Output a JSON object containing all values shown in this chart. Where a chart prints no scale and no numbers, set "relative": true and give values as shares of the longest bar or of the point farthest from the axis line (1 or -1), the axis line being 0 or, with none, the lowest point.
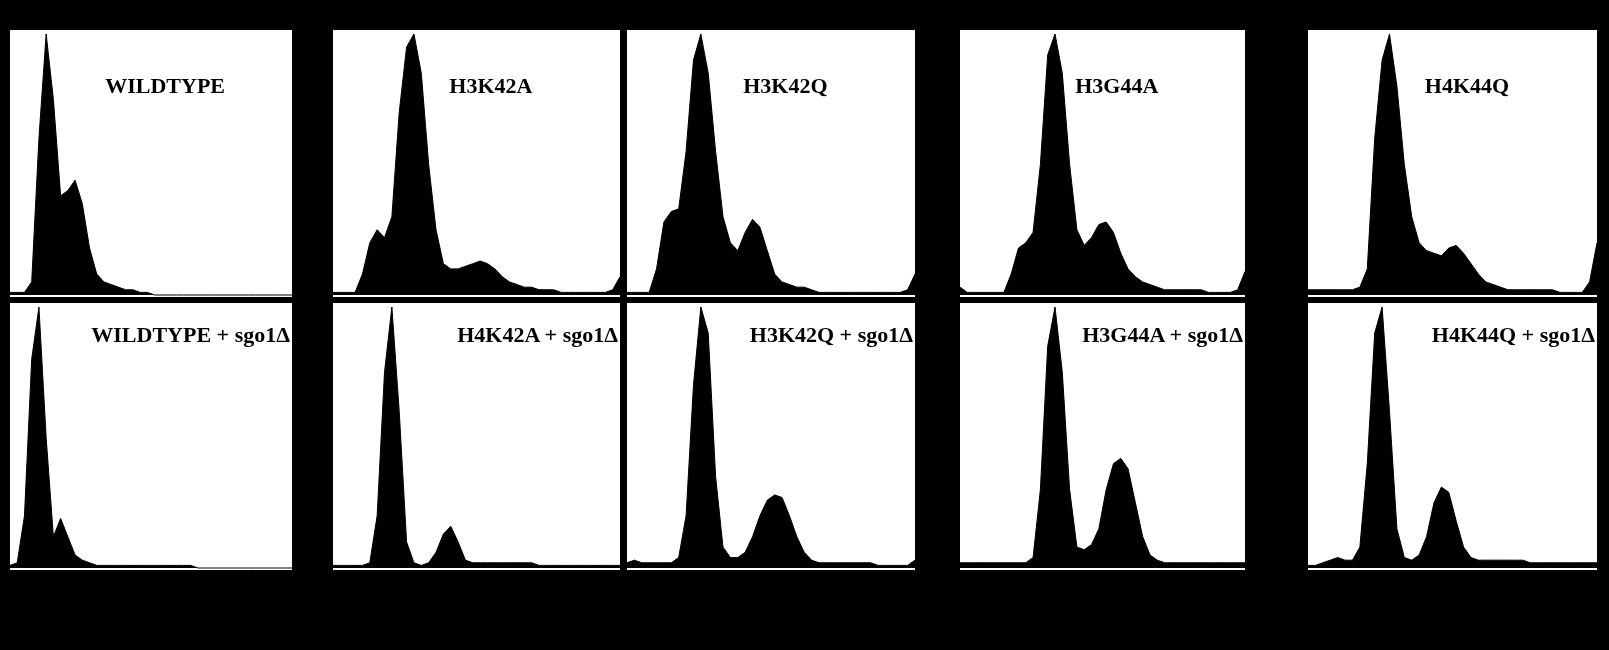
{
  "chart_data": [
    {
      "type": "area",
      "title": "WILDTYPE",
      "relative": true,
      "color": "#000000",
      "categories": [
        null,
        null,
        null,
        null,
        null,
        null,
        null,
        null,
        null,
        null,
        null,
        null,
        null,
        null,
        null,
        null,
        null,
        null,
        null,
        null,
        null,
        null,
        null,
        null,
        null,
        null,
        null,
        null,
        null,
        null,
        null,
        null,
        null,
        null,
        null,
        null,
        null,
        null,
        null,
        null
      ],
      "values": [
        0.01,
        0.01,
        0.01,
        0.05,
        0.6,
        1,
        0.75,
        0.38,
        0.4,
        0.44,
        0.35,
        0.18,
        0.08,
        0.05,
        0.04,
        0.03,
        0.02,
        0.02,
        0.01,
        0.01,
        0,
        0,
        0,
        0,
        0,
        0,
        0,
        0,
        0,
        0,
        0,
        0,
        0,
        0,
        0,
        0,
        0,
        0,
        0,
        0
      ]
    },
    {
      "type": "area",
      "title": "H3K42A",
      "relative": true,
      "color": "#000000",
      "categories": [
        null,
        null,
        null,
        null,
        null,
        null,
        null,
        null,
        null,
        null,
        null,
        null,
        null,
        null,
        null,
        null,
        null,
        null,
        null,
        null,
        null,
        null,
        null,
        null,
        null,
        null,
        null,
        null,
        null,
        null,
        null,
        null,
        null,
        null,
        null,
        null,
        null,
        null,
        null,
        null
      ],
      "values": [
        0.01,
        0.01,
        0.01,
        0.01,
        0.08,
        0.2,
        0.25,
        0.22,
        0.3,
        0.7,
        0.95,
        1,
        0.85,
        0.5,
        0.25,
        0.12,
        0.1,
        0.1,
        0.11,
        0.12,
        0.13,
        0.12,
        0.1,
        0.07,
        0.05,
        0.04,
        0.03,
        0.03,
        0.02,
        0.02,
        0.02,
        0.01,
        0.01,
        0.01,
        0.01,
        0.01,
        0.01,
        0.01,
        0.02,
        0.07
      ]
    },
    {
      "type": "area",
      "title": "H3K42Q",
      "relative": true,
      "color": "#000000",
      "categories": [
        null,
        null,
        null,
        null,
        null,
        null,
        null,
        null,
        null,
        null,
        null,
        null,
        null,
        null,
        null,
        null,
        null,
        null,
        null,
        null,
        null,
        null,
        null,
        null,
        null,
        null,
        null,
        null,
        null,
        null,
        null,
        null,
        null,
        null,
        null,
        null,
        null,
        null,
        null,
        null
      ],
      "values": [
        0.01,
        0.01,
        0.01,
        0.01,
        0.1,
        0.28,
        0.32,
        0.33,
        0.55,
        0.9,
        1,
        0.85,
        0.55,
        0.3,
        0.2,
        0.17,
        0.24,
        0.29,
        0.26,
        0.17,
        0.08,
        0.05,
        0.04,
        0.03,
        0.03,
        0.02,
        0.01,
        0.01,
        0.01,
        0.01,
        0.01,
        0.01,
        0.01,
        0.01,
        0.01,
        0.01,
        0.01,
        0.01,
        0.02,
        0.08
      ]
    },
    {
      "type": "area",
      "title": "H3G44A",
      "relative": true,
      "color": "#000000",
      "categories": [
        null,
        null,
        null,
        null,
        null,
        null,
        null,
        null,
        null,
        null,
        null,
        null,
        null,
        null,
        null,
        null,
        null,
        null,
        null,
        null,
        null,
        null,
        null,
        null,
        null,
        null,
        null,
        null,
        null,
        null,
        null,
        null,
        null,
        null,
        null,
        null,
        null,
        null,
        null,
        null
      ],
      "values": [
        0.03,
        0.01,
        0.01,
        0.01,
        0.01,
        0.01,
        0.01,
        0.08,
        0.18,
        0.2,
        0.24,
        0.5,
        0.92,
        1,
        0.85,
        0.5,
        0.25,
        0.19,
        0.22,
        0.27,
        0.28,
        0.24,
        0.16,
        0.1,
        0.07,
        0.05,
        0.04,
        0.03,
        0.02,
        0.02,
        0.02,
        0.02,
        0.02,
        0.02,
        0.01,
        0.01,
        0.01,
        0.01,
        0.02,
        0.09
      ]
    },
    {
      "type": "area",
      "title": "H4K44Q",
      "relative": true,
      "color": "#000000",
      "categories": [
        null,
        null,
        null,
        null,
        null,
        null,
        null,
        null,
        null,
        null,
        null,
        null,
        null,
        null,
        null,
        null,
        null,
        null,
        null,
        null,
        null,
        null,
        null,
        null,
        null,
        null,
        null,
        null,
        null,
        null,
        null,
        null,
        null,
        null,
        null,
        null,
        null,
        null,
        null,
        null
      ],
      "values": [
        0.02,
        0.02,
        0.02,
        0.02,
        0.02,
        0.02,
        0.02,
        0.03,
        0.1,
        0.6,
        0.9,
        1,
        0.8,
        0.5,
        0.3,
        0.2,
        0.17,
        0.16,
        0.15,
        0.18,
        0.19,
        0.16,
        0.12,
        0.08,
        0.05,
        0.04,
        0.03,
        0.02,
        0.02,
        0.02,
        0.02,
        0.02,
        0.02,
        0.02,
        0.01,
        0.01,
        0.01,
        0.01,
        0.05,
        0.2
      ]
    },
    {
      "type": "area",
      "title": "WILDTYPE + sgo1Δ",
      "relative": true,
      "color": "#000000",
      "categories": [
        null,
        null,
        null,
        null,
        null,
        null,
        null,
        null,
        null,
        null,
        null,
        null,
        null,
        null,
        null,
        null,
        null,
        null,
        null,
        null,
        null,
        null,
        null,
        null,
        null,
        null,
        null,
        null,
        null,
        null,
        null,
        null,
        null,
        null,
        null,
        null,
        null,
        null,
        null,
        null
      ],
      "values": [
        0.01,
        0.02,
        0.2,
        0.8,
        1,
        0.5,
        0.12,
        0.19,
        0.12,
        0.05,
        0.03,
        0.02,
        0.01,
        0.01,
        0.01,
        0.01,
        0.01,
        0.01,
        0.01,
        0.01,
        0.01,
        0.01,
        0.01,
        0.01,
        0.01,
        0.01,
        0,
        0,
        0,
        0,
        0,
        0,
        0,
        0,
        0,
        0,
        0,
        0,
        0,
        0
      ]
    },
    {
      "type": "area",
      "title": "H4K42A + sgo1Δ",
      "relative": true,
      "color": "#000000",
      "categories": [
        null,
        null,
        null,
        null,
        null,
        null,
        null,
        null,
        null,
        null,
        null,
        null,
        null,
        null,
        null,
        null,
        null,
        null,
        null,
        null,
        null,
        null,
        null,
        null,
        null,
        null,
        null,
        null,
        null,
        null,
        null,
        null,
        null,
        null,
        null,
        null,
        null,
        null,
        null,
        null
      ],
      "values": [
        0.01,
        0.01,
        0.01,
        0.01,
        0.01,
        0.02,
        0.2,
        0.75,
        1,
        0.6,
        0.1,
        0.02,
        0.01,
        0.02,
        0.06,
        0.13,
        0.16,
        0.1,
        0.03,
        0.02,
        0.02,
        0.02,
        0.02,
        0.02,
        0.02,
        0.02,
        0.02,
        0.02,
        0.01,
        0.01,
        0.01,
        0.01,
        0.01,
        0.01,
        0.01,
        0.01,
        0.01,
        0.01,
        0.01,
        0.01
      ]
    },
    {
      "type": "area",
      "title": "H3K42Q + sgo1Δ",
      "relative": true,
      "color": "#000000",
      "categories": [
        null,
        null,
        null,
        null,
        null,
        null,
        null,
        null,
        null,
        null,
        null,
        null,
        null,
        null,
        null,
        null,
        null,
        null,
        null,
        null,
        null,
        null,
        null,
        null,
        null,
        null,
        null,
        null,
        null,
        null,
        null,
        null,
        null,
        null,
        null,
        null,
        null,
        null,
        null,
        null
      ],
      "values": [
        0.02,
        0.03,
        0.02,
        0.02,
        0.02,
        0.02,
        0.02,
        0.04,
        0.2,
        0.7,
        1,
        0.9,
        0.35,
        0.08,
        0.04,
        0.04,
        0.06,
        0.12,
        0.2,
        0.26,
        0.28,
        0.27,
        0.2,
        0.12,
        0.06,
        0.03,
        0.02,
        0.02,
        0.02,
        0.02,
        0.02,
        0.02,
        0.02,
        0.02,
        0.01,
        0.01,
        0.01,
        0.01,
        0.01,
        0.03
      ]
    },
    {
      "type": "area",
      "title": "H3G44A + sgo1Δ",
      "relative": true,
      "color": "#000000",
      "categories": [
        null,
        null,
        null,
        null,
        null,
        null,
        null,
        null,
        null,
        null,
        null,
        null,
        null,
        null,
        null,
        null,
        null,
        null,
        null,
        null,
        null,
        null,
        null,
        null,
        null,
        null,
        null,
        null,
        null,
        null,
        null,
        null,
        null,
        null,
        null,
        null,
        null,
        null,
        null,
        null
      ],
      "values": [
        0.02,
        0.02,
        0.02,
        0.02,
        0.02,
        0.02,
        0.02,
        0.02,
        0.02,
        0.02,
        0.04,
        0.3,
        0.85,
        1,
        0.75,
        0.3,
        0.08,
        0.07,
        0.09,
        0.15,
        0.3,
        0.4,
        0.42,
        0.38,
        0.25,
        0.12,
        0.05,
        0.03,
        0.02,
        0.02,
        0.02,
        0.02,
        0.02,
        0.02,
        0.02,
        0.02,
        0.02,
        0.02,
        0.02,
        0.02
      ]
    },
    {
      "type": "area",
      "title": "H4K44Q + sgo1Δ",
      "relative": true,
      "color": "#000000",
      "categories": [
        null,
        null,
        null,
        null,
        null,
        null,
        null,
        null,
        null,
        null,
        null,
        null,
        null,
        null,
        null,
        null,
        null,
        null,
        null,
        null,
        null,
        null,
        null,
        null,
        null,
        null,
        null,
        null,
        null,
        null,
        null,
        null,
        null,
        null,
        null,
        null,
        null,
        null,
        null,
        null
      ],
      "values": [
        0.01,
        0.01,
        0.02,
        0.03,
        0.04,
        0.03,
        0.03,
        0.08,
        0.4,
        0.9,
        1,
        0.6,
        0.15,
        0.04,
        0.03,
        0.05,
        0.12,
        0.25,
        0.31,
        0.29,
        0.18,
        0.08,
        0.04,
        0.03,
        0.03,
        0.03,
        0.03,
        0.03,
        0.03,
        0.03,
        0.02,
        0.02,
        0.02,
        0.02,
        0.02,
        0.02,
        0.02,
        0.02,
        0.02,
        0.02
      ]
    }
  ]
}
